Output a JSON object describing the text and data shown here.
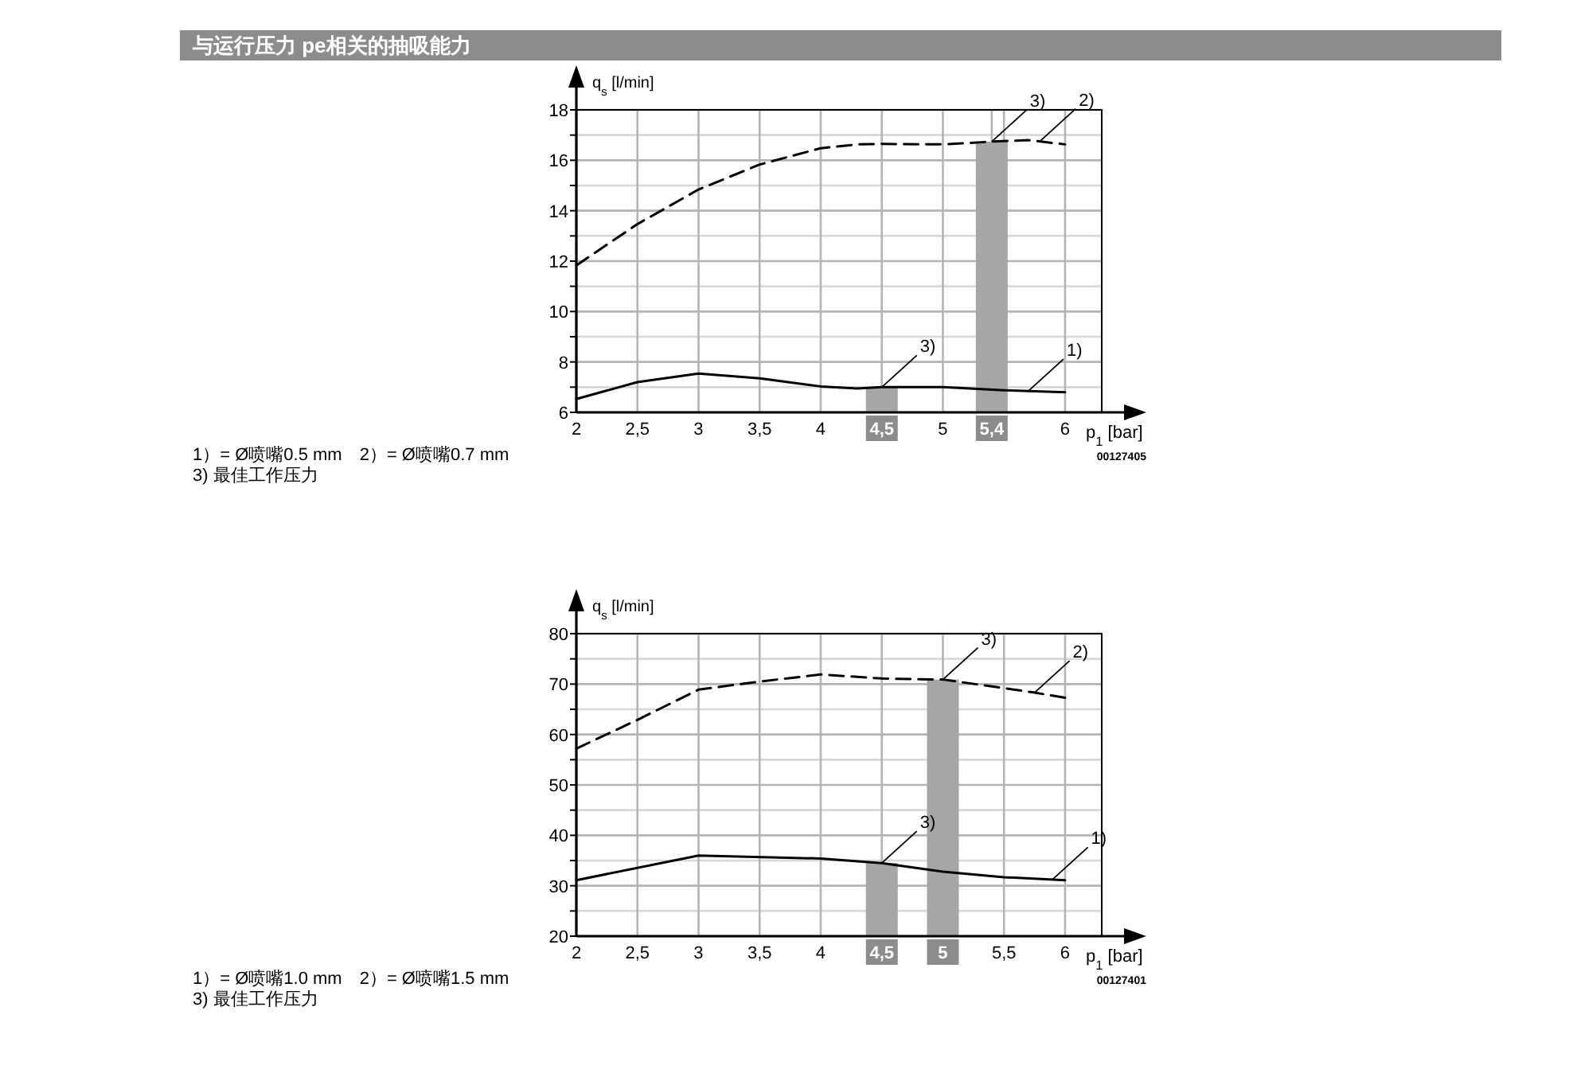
{
  "chart_data": [
    {
      "type": "line",
      "title": "与运行压力 pe相关的抽吸能力",
      "xlabel": "p$_{1}$ [bar]",
      "ylabel": "q$_{s}$ [l/min]",
      "xlim": [
        2,
        6.3
      ],
      "ylim": [
        6,
        18
      ],
      "xticks": [
        2,
        {
          "value": 2.5,
          "label": "2,5"
        },
        3,
        {
          "value": 3.5,
          "label": "3,5"
        },
        4,
        {
          "value": 4.5,
          "label": "4,5"
        },
        5,
        {
          "value": 5.4,
          "label": "5,4"
        },
        {
          "value": 5.5,
          "label": null
        },
        6
      ],
      "yticks": [
        6,
        {
          "value": 7,
          "label": null
        },
        8,
        {
          "value": 9,
          "label": null
        },
        10,
        {
          "value": 11,
          "label": null
        },
        12,
        {
          "value": 13,
          "label": null
        },
        14,
        {
          "value": 15,
          "label": null
        },
        16,
        {
          "value": 17,
          "label": null
        },
        18
      ],
      "grid": true,
      "series": [
        {
          "type": "bar",
          "color": "#a6a6a6",
          "x": [
            4.5,
            5.4
          ],
          "values": [
            7.0,
            16.74
          ]
        },
        {
          "line_style": "solid",
          "color": "#000000",
          "x": [
            2,
            2.5,
            3,
            3.5,
            4,
            4.3,
            4.5,
            5,
            5.5,
            6
          ],
          "values": [
            6.53,
            7.2,
            7.54,
            7.35,
            7.03,
            6.95,
            7.0,
            7.0,
            6.88,
            6.8
          ]
        },
        {
          "line_style": "dashed",
          "color": "#000000",
          "x": [
            2,
            2.5,
            3,
            3.5,
            4,
            4.3,
            4.5,
            5,
            5.4,
            5.7,
            6
          ],
          "values": [
            11.83,
            13.47,
            14.84,
            15.83,
            16.48,
            16.63,
            16.65,
            16.63,
            16.74,
            16.8,
            16.63
          ]
        }
      ],
      "annotations": [
        "00127405",
        "1）= Ø喷嘴0.5 mm　2）= Ø喷嘴0.7 mm",
        "3) 最佳工作压力",
        {
          "text": "3)",
          "x": 4.5,
          "y": 7.0
        },
        {
          "text": "1)",
          "x": 5.7,
          "y": 6.85
        },
        {
          "text": "3)",
          "x": 5.4,
          "y": 16.74
        },
        {
          "text": "2)",
          "x": 5.8,
          "y": 16.78
        }
      ]
    },
    {
      "type": "line",
      "xlabel": "p$_{1}$ [bar]",
      "ylabel": "q$_{s}$ [l/min]",
      "xlim": [
        2,
        6.3
      ],
      "ylim": [
        20,
        80
      ],
      "xticks": [
        2,
        {
          "value": 2.5,
          "label": "2,5"
        },
        3,
        {
          "value": 3.5,
          "label": "3,5"
        },
        4,
        {
          "value": 4.5,
          "label": "4,5"
        },
        5,
        {
          "value": 5.5,
          "label": "5,5"
        },
        6
      ],
      "yticks": [
        20,
        {
          "value": 25,
          "label": null
        },
        30,
        {
          "value": 35,
          "label": null
        },
        40,
        {
          "value": 45,
          "label": null
        },
        50,
        {
          "value": 55,
          "label": null
        },
        60,
        {
          "value": 65,
          "label": null
        },
        70,
        {
          "value": 75,
          "label": null
        },
        80
      ],
      "grid": true,
      "series": [
        {
          "type": "bar",
          "color": "#a6a6a6",
          "x": [
            4.5,
            5
          ],
          "values": [
            34.5,
            70.9
          ]
        },
        {
          "line_style": "solid",
          "color": "#000000",
          "x": [
            2,
            3,
            4,
            4.5,
            5,
            5.5,
            6
          ],
          "values": [
            31.1,
            36.0,
            35.4,
            34.5,
            32.8,
            31.7,
            31.1
          ]
        },
        {
          "line_style": "dashed",
          "color": "#000000",
          "x": [
            2,
            2.5,
            3,
            3.5,
            4,
            4.5,
            5,
            5.5,
            5.75,
            6
          ],
          "values": [
            57.2,
            62.9,
            68.9,
            70.5,
            71.9,
            71.1,
            70.9,
            69.2,
            68.3,
            67.3
          ]
        }
      ],
      "annotations": [
        "00127401",
        "1）= Ø喷嘴1.0 mm　2）= Ø喷嘴1.5 mm",
        "3) 最佳工作压力",
        {
          "text": "3)",
          "x": 4.5,
          "y": 34.5
        },
        {
          "text": "1)",
          "x": 5.9,
          "y": 31.3
        },
        {
          "text": "3)",
          "x": 5,
          "y": 70.9
        },
        {
          "text": "2)",
          "x": 5.75,
          "y": 68.3
        }
      ]
    }
  ]
}
